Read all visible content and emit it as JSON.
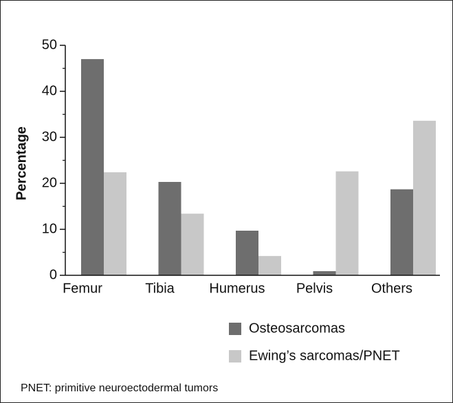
{
  "chart_data": {
    "type": "bar",
    "y_label": "Percentage",
    "categories": [
      "Femur",
      "Tibia",
      "Humerus",
      "Pelvis",
      "Others"
    ],
    "series": [
      {
        "name": "Osteosarcomas",
        "color": "#6e6e6e",
        "values": [
          47,
          20.3,
          9.7,
          0.9,
          18.7
        ]
      },
      {
        "name": "Ewing’s sarcomas/PNET",
        "color": "#c8c8c8",
        "values": [
          22.4,
          13.4,
          4.2,
          22.6,
          33.6
        ]
      }
    ],
    "ylim": [
      0,
      50
    ],
    "yticks": [
      0,
      10,
      20,
      30,
      40,
      50
    ],
    "yminorticks": [
      5,
      15,
      25,
      35,
      45
    ],
    "footnote": "PNET: primitive neuroectodermal tumors"
  }
}
